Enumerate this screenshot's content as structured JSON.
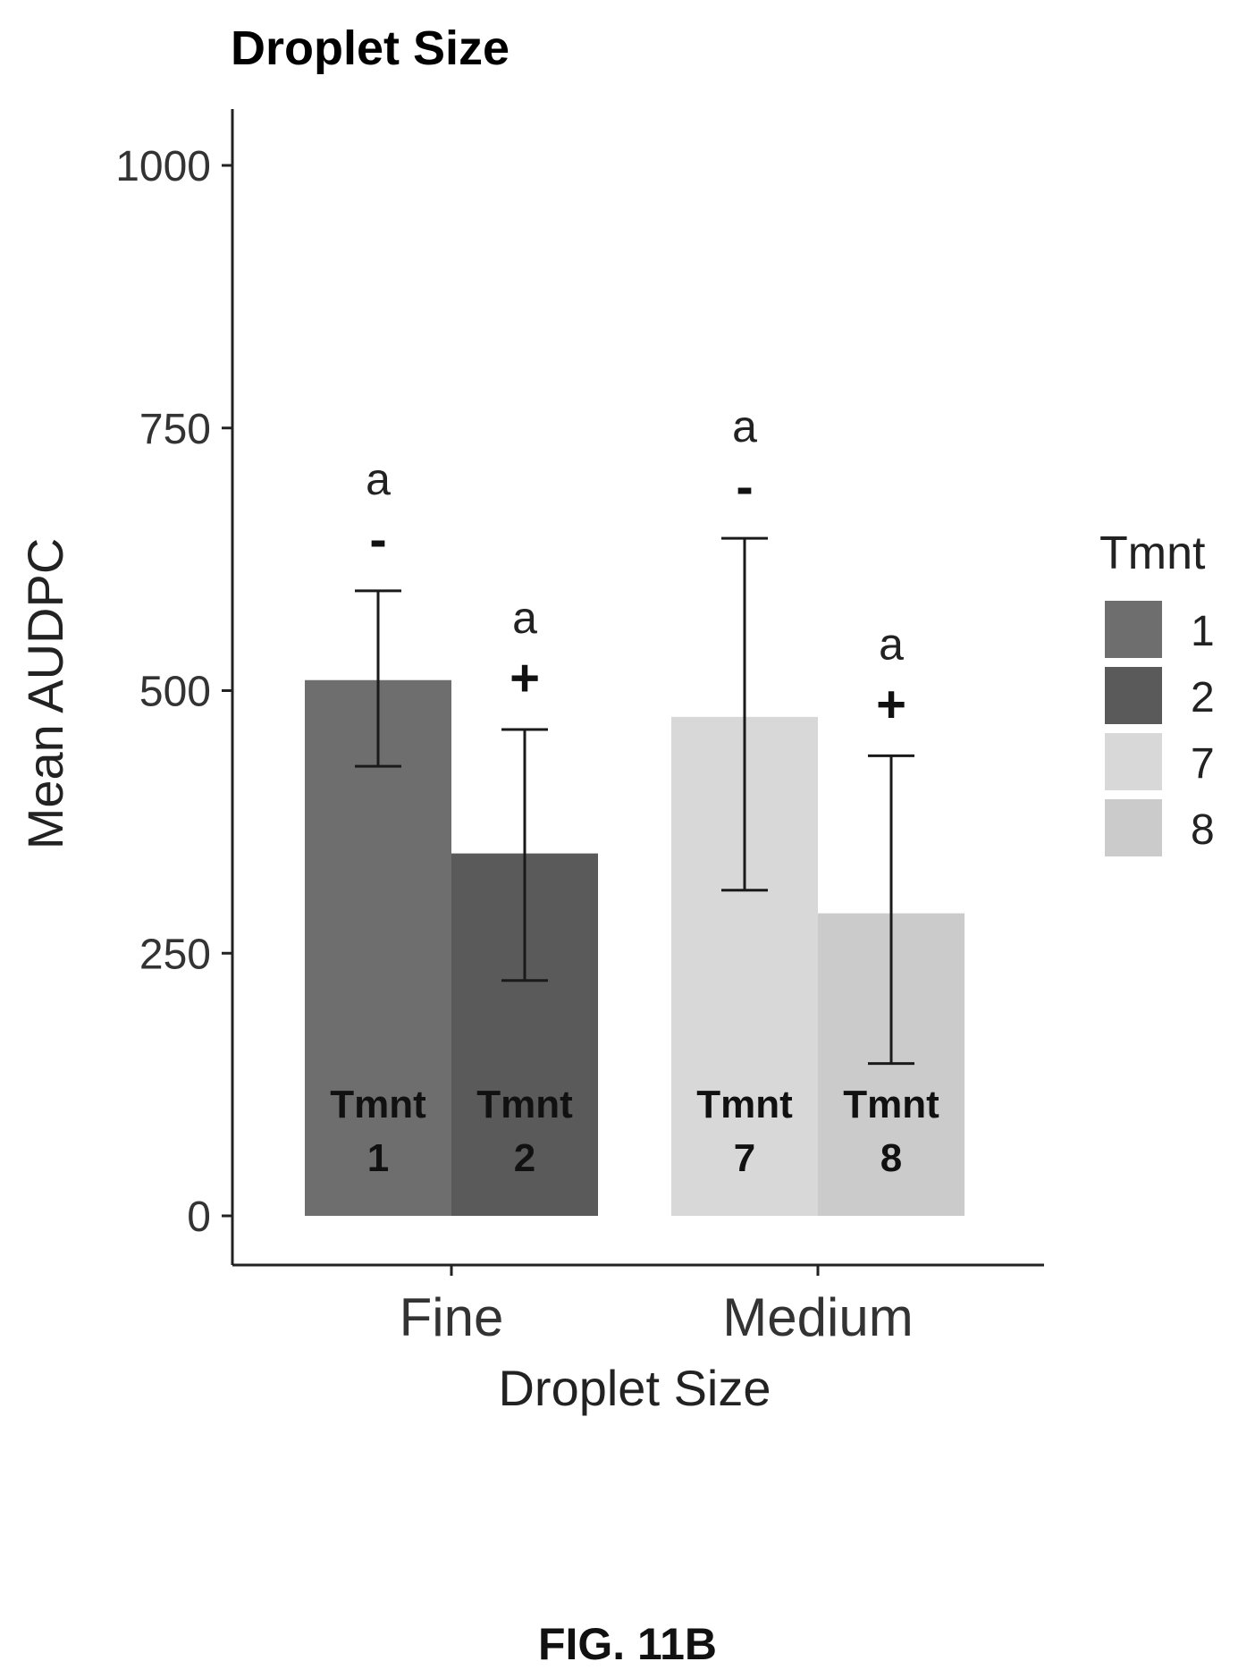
{
  "figure_label": "FIG. 11B",
  "chart_data": {
    "type": "bar",
    "title": "Droplet Size",
    "xlabel": "Droplet Size",
    "ylabel": "Mean AUDPC",
    "ylim": [
      -100,
      1050
    ],
    "yticks": [
      0,
      250,
      500,
      750,
      1000
    ],
    "categories": [
      "Fine",
      "Medium"
    ],
    "legend": {
      "title": "Tmnt",
      "position": "right",
      "entries": [
        "1",
        "2",
        "7",
        "8"
      ]
    },
    "series": [
      {
        "name": "1",
        "category": "Fine",
        "value": 510,
        "error_low": 428,
        "error_high": 595,
        "color": "#6e6e6e",
        "sig_letter": "a",
        "sign": "-",
        "label_line1": "Tmnt",
        "label_line2": "1"
      },
      {
        "name": "2",
        "category": "Fine",
        "value": 345,
        "error_low": 224,
        "error_high": 463,
        "color": "#5a5a5a",
        "sig_letter": "a",
        "sign": "+",
        "label_line1": "Tmnt",
        "label_line2": "2"
      },
      {
        "name": "7",
        "category": "Medium",
        "value": 475,
        "error_low": 310,
        "error_high": 645,
        "color": "#d8d8d8",
        "sig_letter": "a",
        "sign": "-",
        "label_line1": "Tmnt",
        "label_line2": "7"
      },
      {
        "name": "8",
        "category": "Medium",
        "value": 288,
        "error_low": 145,
        "error_high": 438,
        "color": "#cbcbcb",
        "sig_letter": "a",
        "sign": "+",
        "label_line1": "Tmnt",
        "label_line2": "8"
      }
    ],
    "grid": false
  }
}
